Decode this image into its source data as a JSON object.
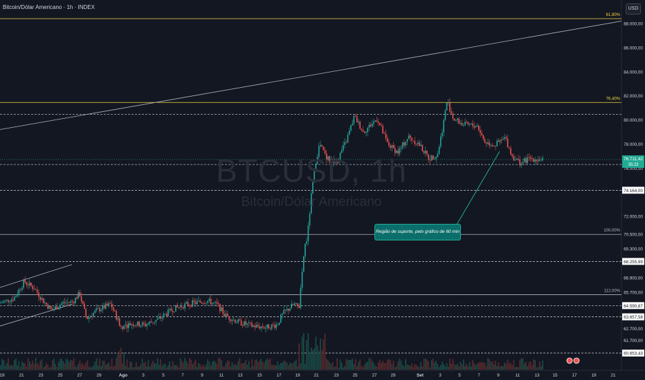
{
  "header": {
    "title": "Bitcoin/Dólar Americano · 1h · INDEX",
    "currency_button": "USD"
  },
  "watermark": {
    "symbol": "BTCUSD, 1h",
    "name": "Bitcoin/Dólar Americano"
  },
  "annotation": {
    "text": "Região de suporte, pelo gráfico de 60 min"
  },
  "colors": {
    "background": "#131722",
    "price_up": "#26a69a",
    "price_down": "#ef5350",
    "fib": "#f5d742",
    "current_price": "#22ab94"
  },
  "chart_data": {
    "type": "candlestick",
    "price_axis_labels": [
      "88.000,00",
      "86.000,00",
      "84.000,00",
      "82.000,00",
      "80.000,00",
      "78.000,00",
      "76.000,00",
      "74.164,00",
      "72.000,00",
      "70.500,00",
      "69.300,00",
      "68.255,99",
      "66.900,00",
      "65.700,00",
      "64.590,87",
      "63.657,58",
      "62.700,00",
      "61.700,00",
      "60.653,43"
    ],
    "time_axis_labels": [
      "19",
      "21",
      "23",
      "25",
      "27",
      "29",
      "Ago",
      "3",
      "5",
      "7",
      "9",
      "11",
      "13",
      "15",
      "17",
      "19",
      "21",
      "23",
      "25",
      "27",
      "29",
      "Set",
      "3",
      "5",
      "7",
      "9",
      "11",
      "13",
      "15",
      "17",
      "19",
      "21"
    ],
    "current_price": {
      "value": "76.711,42",
      "countdown": "35:23",
      "y": 76711.42
    },
    "horizontal_levels": [
      {
        "value": "80.472,68",
        "y": 80472.68,
        "style": "dashed"
      },
      {
        "value": "76.299,83",
        "y": 76299.83,
        "style": "dashed"
      },
      {
        "value": "74.164,00",
        "y": 74164,
        "style": "dashed"
      },
      {
        "value": "68.255,99",
        "y": 68255.99,
        "style": "dashed"
      },
      {
        "value": "64.590,87",
        "y": 64590.87,
        "style": "dashed"
      },
      {
        "value": "63.657,58",
        "y": 63657.58,
        "style": "dashed"
      },
      {
        "value": "60.653,43",
        "y": 60653.43,
        "style": "dashed"
      }
    ],
    "fib_levels": [
      {
        "label": "61,80%",
        "y": 88400,
        "color": "#f5d742"
      },
      {
        "label": "76,40%",
        "y": 81450,
        "color": "#f5d742"
      },
      {
        "label": "100,00%",
        "y": 70500,
        "color": "#b2b5be"
      },
      {
        "label": "112,00%",
        "y": 65500,
        "color": "#b2b5be"
      }
    ],
    "price_path": [
      [
        0,
        64800
      ],
      [
        20,
        65200
      ],
      [
        35,
        66600
      ],
      [
        50,
        66000
      ],
      [
        62,
        65000
      ],
      [
        75,
        64200
      ],
      [
        90,
        64800
      ],
      [
        105,
        64900
      ],
      [
        115,
        65600
      ],
      [
        125,
        63500
      ],
      [
        140,
        64200
      ],
      [
        160,
        64700
      ],
      [
        175,
        62800
      ],
      [
        190,
        63100
      ],
      [
        210,
        63000
      ],
      [
        230,
        63500
      ],
      [
        250,
        64300
      ],
      [
        270,
        64700
      ],
      [
        300,
        65000
      ],
      [
        315,
        64600
      ],
      [
        325,
        63800
      ],
      [
        345,
        63200
      ],
      [
        365,
        62900
      ],
      [
        385,
        62800
      ],
      [
        400,
        63000
      ],
      [
        410,
        64000
      ],
      [
        425,
        64700
      ],
      [
        432,
        64400
      ],
      [
        436,
        66800
      ],
      [
        440,
        69500
      ],
      [
        444,
        70200
      ],
      [
        450,
        73800
      ],
      [
        456,
        76500
      ],
      [
        462,
        78000
      ],
      [
        472,
        76800
      ],
      [
        486,
        76500
      ],
      [
        500,
        78200
      ],
      [
        512,
        80300
      ],
      [
        525,
        79000
      ],
      [
        545,
        80100
      ],
      [
        560,
        78000
      ],
      [
        575,
        77300
      ],
      [
        590,
        78600
      ],
      [
        605,
        78000
      ],
      [
        620,
        76800
      ],
      [
        632,
        77100
      ],
      [
        640,
        79500
      ],
      [
        646,
        81600
      ],
      [
        655,
        80100
      ],
      [
        670,
        79600
      ],
      [
        690,
        79500
      ],
      [
        700,
        78200
      ],
      [
        715,
        77900
      ],
      [
        730,
        78500
      ],
      [
        740,
        77000
      ],
      [
        752,
        76400
      ],
      [
        765,
        76800
      ],
      [
        785,
        76700
      ]
    ],
    "trendlines": [
      {
        "from": [
          0,
          79200
        ],
        "to": [
          898,
          88200
        ],
        "color": "#b2b5be"
      },
      {
        "from": [
          0,
          66100
        ],
        "to": [
          104,
          68000
        ],
        "color": "#b2b5be"
      },
      {
        "from": [
          0,
          62900
        ],
        "to": [
          104,
          64700
        ],
        "color": "#b2b5be"
      }
    ]
  }
}
